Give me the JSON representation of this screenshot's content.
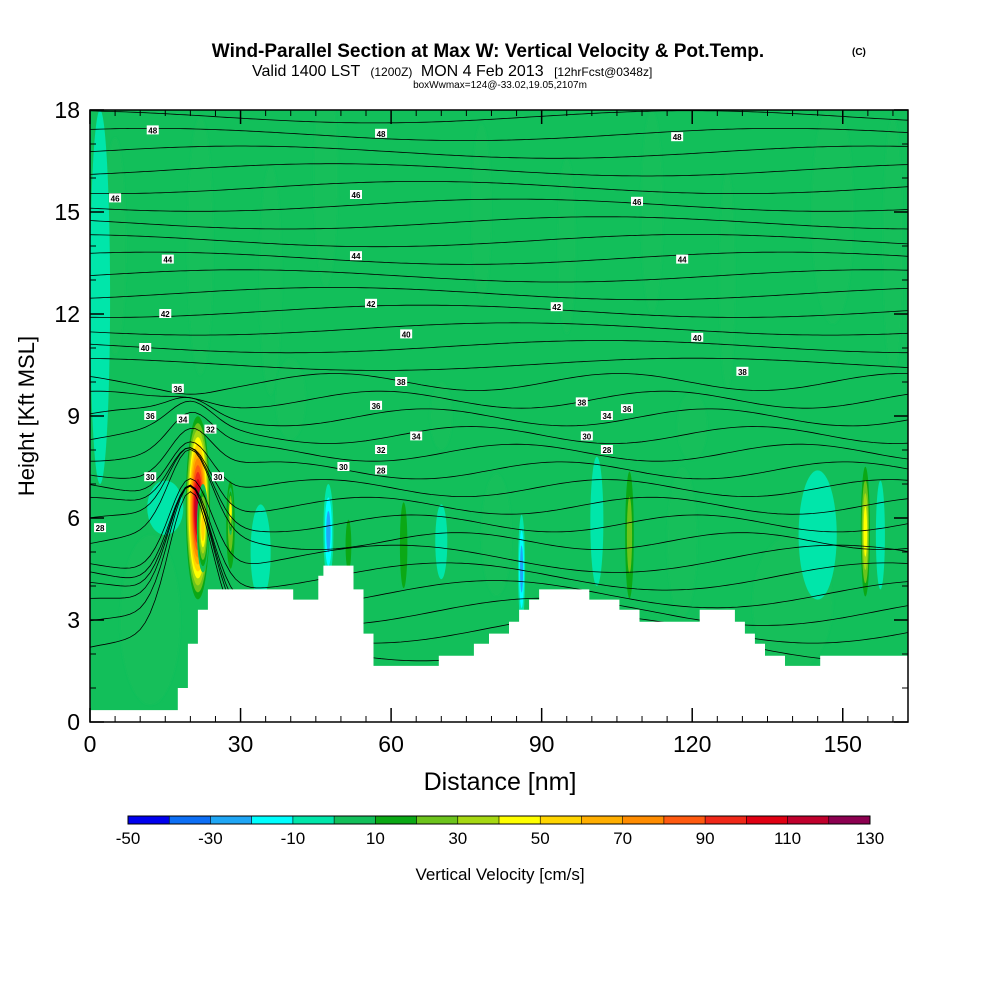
{
  "header": {
    "title": "Wind-Parallel Section at Max W: Vertical Velocity & Pot.Temp.",
    "copyright": "(C)",
    "valid_main": "Valid 1400 LST",
    "valid_zulu": "(1200Z)",
    "valid_date": "MON 4 Feb 2013",
    "forecast": "[12hrFcst@0348z]",
    "box_info": "boxWwmax=124@-33.02,19.05,2107m"
  },
  "chart_data": {
    "type": "heatmap",
    "xlabel": "Distance [nm]",
    "ylabel": "Height [Kft MSL]",
    "xlim": [
      0,
      163
    ],
    "ylim": [
      0,
      18
    ],
    "x_ticks": [
      0,
      30,
      60,
      90,
      120,
      150
    ],
    "y_ticks": [
      0,
      3,
      6,
      9,
      12,
      15,
      18
    ],
    "background_value": 0,
    "colorbar": {
      "label": "Vertical Velocity [cm/s]",
      "tick_labels": [
        "-50",
        "-30",
        "-10",
        "10",
        "30",
        "50",
        "70",
        "90",
        "110",
        "130"
      ],
      "boundaries": [
        -50,
        -40,
        -30,
        -20,
        -10,
        0,
        10,
        20,
        30,
        40,
        50,
        60,
        70,
        80,
        90,
        100,
        110,
        120,
        130
      ],
      "colors": [
        "#0000ee",
        "#0d6ff5",
        "#1fa6f5",
        "#00ffff",
        "#00e6aa",
        "#12bf5a",
        "#0ba815",
        "#6cc31c",
        "#a6d812",
        "#ffff00",
        "#ffd500",
        "#ffae00",
        "#ff8c00",
        "#ff5a10",
        "#f02818",
        "#e00012",
        "#c0002c",
        "#8c0050"
      ]
    },
    "terrain": [
      [
        0,
        0.35
      ],
      [
        17.5,
        0.35
      ],
      [
        17.5,
        1
      ],
      [
        19.5,
        1
      ],
      [
        19.5,
        2.3
      ],
      [
        21.5,
        2.3
      ],
      [
        21.5,
        3.3
      ],
      [
        23.5,
        3.3
      ],
      [
        23.5,
        3.9
      ],
      [
        40.5,
        3.9
      ],
      [
        40.5,
        3.6
      ],
      [
        45.5,
        3.6
      ],
      [
        45.5,
        4.3
      ],
      [
        46.5,
        4.3
      ],
      [
        46.5,
        4.6
      ],
      [
        52.5,
        4.6
      ],
      [
        52.5,
        3.9
      ],
      [
        54.5,
        3.9
      ],
      [
        54.5,
        2.6
      ],
      [
        56.5,
        2.6
      ],
      [
        56.5,
        1.65
      ],
      [
        69.5,
        1.65
      ],
      [
        69.5,
        1.95
      ],
      [
        76.5,
        1.95
      ],
      [
        76.5,
        2.3
      ],
      [
        79.5,
        2.3
      ],
      [
        79.5,
        2.6
      ],
      [
        83.5,
        2.6
      ],
      [
        83.5,
        2.95
      ],
      [
        85.5,
        2.95
      ],
      [
        85.5,
        3.3
      ],
      [
        87.5,
        3.3
      ],
      [
        87.5,
        3.6
      ],
      [
        89.5,
        3.6
      ],
      [
        89.5,
        3.9
      ],
      [
        99.5,
        3.9
      ],
      [
        99.5,
        3.6
      ],
      [
        105.5,
        3.6
      ],
      [
        105.5,
        3.3
      ],
      [
        109.5,
        3.3
      ],
      [
        109.5,
        2.95
      ],
      [
        121.5,
        2.95
      ],
      [
        121.5,
        3.3
      ],
      [
        128.5,
        3.3
      ],
      [
        128.5,
        2.95
      ],
      [
        130.5,
        2.95
      ],
      [
        130.5,
        2.6
      ],
      [
        132.5,
        2.6
      ],
      [
        132.5,
        2.3
      ],
      [
        134.5,
        2.3
      ],
      [
        134.5,
        1.95
      ],
      [
        138.5,
        1.95
      ],
      [
        138.5,
        1.65
      ],
      [
        145.5,
        1.65
      ],
      [
        145.5,
        1.95
      ],
      [
        163,
        1.95
      ]
    ],
    "w_features": [
      {
        "x": 21.5,
        "y": 6.3,
        "rx": 2.6,
        "ry": 2.9,
        "value": 115
      },
      {
        "x": 22.5,
        "y": 5.7,
        "rx": 1.2,
        "ry": 1.3,
        "value": 60
      },
      {
        "x": 28,
        "y": 5.8,
        "rx": 1.2,
        "ry": 1.8,
        "value": 30
      },
      {
        "x": 28,
        "y": 6.2,
        "rx": 0.5,
        "ry": 0.7,
        "value": 45
      },
      {
        "x": 15,
        "y": 6.3,
        "rx": 3.6,
        "ry": 0.8,
        "value": -12
      },
      {
        "x": 34,
        "y": 5.0,
        "rx": 2.0,
        "ry": 1.4,
        "value": -12
      },
      {
        "x": 47.5,
        "y": 5.6,
        "rx": 1.0,
        "ry": 1.4,
        "value": -25
      },
      {
        "x": 51.5,
        "y": 5.2,
        "rx": 1.0,
        "ry": 1.3,
        "value": 22
      },
      {
        "x": 62.5,
        "y": 5.2,
        "rx": 1.3,
        "ry": 2.2,
        "value": 18
      },
      {
        "x": 70,
        "y": 5.3,
        "rx": 1.2,
        "ry": 1.1,
        "value": -12
      },
      {
        "x": 86,
        "y": 4.5,
        "rx": 0.7,
        "ry": 1.6,
        "value": -25
      },
      {
        "x": 101,
        "y": 5.9,
        "rx": 1.3,
        "ry": 1.9,
        "value": -12
      },
      {
        "x": 107.5,
        "y": 5.5,
        "rx": 1.2,
        "ry": 2.6,
        "value": 25
      },
      {
        "x": 145,
        "y": 5.5,
        "rx": 3.8,
        "ry": 1.9,
        "value": -12
      },
      {
        "x": 154.5,
        "y": 5.6,
        "rx": 1.1,
        "ry": 2.3,
        "value": 48
      },
      {
        "x": 157.5,
        "y": 5.5,
        "rx": 0.9,
        "ry": 1.6,
        "value": -12
      },
      {
        "x": 2,
        "y": 12.5,
        "rx": 2.0,
        "ry": 5.5,
        "value": -12
      }
    ],
    "theta_contours": [
      {
        "label": "28",
        "x": 2,
        "y": 5.7
      },
      {
        "label": "30",
        "x": 12,
        "y": 7.2
      },
      {
        "label": "30",
        "x": 25.5,
        "y": 7.2
      },
      {
        "label": "30",
        "x": 50.5,
        "y": 7.5
      },
      {
        "label": "30",
        "x": 99,
        "y": 8.4
      },
      {
        "label": "28",
        "x": 58,
        "y": 7.4
      },
      {
        "label": "28",
        "x": 103,
        "y": 8.0
      },
      {
        "label": "32",
        "x": 24,
        "y": 8.6
      },
      {
        "label": "32",
        "x": 58,
        "y": 8.0
      },
      {
        "label": "34",
        "x": 18.5,
        "y": 8.9
      },
      {
        "label": "34",
        "x": 65,
        "y": 8.4
      },
      {
        "label": "34",
        "x": 103,
        "y": 9.0
      },
      {
        "label": "36",
        "x": 12,
        "y": 9.0
      },
      {
        "label": "36",
        "x": 57,
        "y": 9.3
      },
      {
        "label": "36",
        "x": 107,
        "y": 9.2
      },
      {
        "label": "36",
        "x": 17.5,
        "y": 9.8
      },
      {
        "label": "38",
        "x": 62,
        "y": 10.0
      },
      {
        "label": "38",
        "x": 130,
        "y": 10.3
      },
      {
        "label": "38",
        "x": 98,
        "y": 9.4
      },
      {
        "label": "40",
        "x": 11,
        "y": 11.0
      },
      {
        "label": "40",
        "x": 63,
        "y": 11.4
      },
      {
        "label": "40",
        "x": 121,
        "y": 11.3
      },
      {
        "label": "42",
        "x": 15,
        "y": 12.0
      },
      {
        "label": "42",
        "x": 56,
        "y": 12.3
      },
      {
        "label": "42",
        "x": 93,
        "y": 12.2
      },
      {
        "label": "44",
        "x": 15.5,
        "y": 13.6
      },
      {
        "label": "44",
        "x": 53,
        "y": 13.7
      },
      {
        "label": "44",
        "x": 118,
        "y": 13.6
      },
      {
        "label": "46",
        "x": 5,
        "y": 15.4
      },
      {
        "label": "46",
        "x": 53,
        "y": 15.5
      },
      {
        "label": "46",
        "x": 109,
        "y": 15.3
      },
      {
        "label": "48",
        "x": 12.5,
        "y": 17.4
      },
      {
        "label": "48",
        "x": 58,
        "y": 17.3
      },
      {
        "label": "48",
        "x": 117,
        "y": 17.2
      }
    ]
  }
}
